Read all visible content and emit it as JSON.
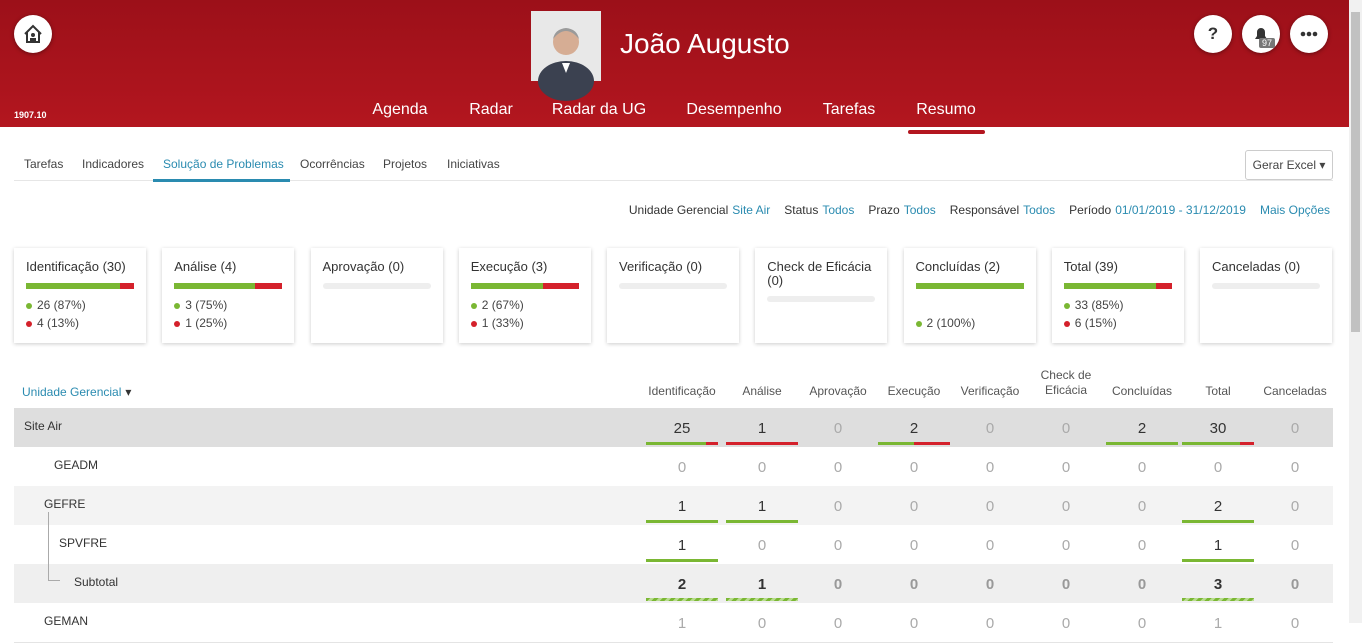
{
  "header": {
    "version": "1907.10",
    "user": "João Augusto",
    "notifications": "97",
    "help": "?",
    "nav": [
      "Agenda",
      "Radar",
      "Radar da UG",
      "Desempenho",
      "Tarefas",
      "Resumo"
    ]
  },
  "tabs": [
    "Tarefas",
    "Indicadores",
    "Solução de Problemas",
    "Ocorrências",
    "Projetos",
    "Iniciativas"
  ],
  "export_button": "Gerar Excel",
  "filters": [
    {
      "label": "Unidade Gerencial",
      "value": "Site Air"
    },
    {
      "label": "Status",
      "value": "Todos"
    },
    {
      "label": "Prazo",
      "value": "Todos"
    },
    {
      "label": "Responsável",
      "value": "Todos"
    },
    {
      "label": "Período",
      "value": "01/01/2019 - 31/12/2019"
    }
  ],
  "more_options": "Mais Opções",
  "cards": [
    {
      "title": "Identificação (30)",
      "green": {
        "value": 87,
        "label": "26 (87%)"
      },
      "red": {
        "value": 13,
        "label": "4 (13%)"
      }
    },
    {
      "title": "Análise (4)",
      "green": {
        "value": 75,
        "label": "3 (75%)"
      },
      "red": {
        "value": 25,
        "label": "1 (25%)"
      }
    },
    {
      "title": "Aprovação (0)"
    },
    {
      "title": "Execução (3)",
      "green": {
        "value": 67,
        "label": "2 (67%)"
      },
      "red": {
        "value": 33,
        "label": "1 (33%)"
      }
    },
    {
      "title": "Verificação (0)"
    },
    {
      "title": "Check de Eficácia (0)"
    },
    {
      "title": "Concluídas (2)",
      "green": {
        "value": 100,
        "label": "2 (100%)"
      }
    },
    {
      "title": "Total (39)",
      "green": {
        "value": 85,
        "label": "33 (85%)"
      },
      "red": {
        "value": 15,
        "label": "6 (15%)"
      }
    },
    {
      "title": "Canceladas (0)"
    }
  ],
  "table": {
    "group_header": "Unidade Gerencial",
    "columns": [
      "Identificação",
      "Análise",
      "Aprovação",
      "Execução",
      "Verificação",
      "Check de Eficácia",
      "Concluídas",
      "Total",
      "Canceladas"
    ],
    "rows": [
      {
        "name": "Site Air",
        "values": [
          25,
          1,
          0,
          2,
          0,
          0,
          2,
          30,
          0
        ]
      },
      {
        "name": "GEADM",
        "values": [
          0,
          0,
          0,
          0,
          0,
          0,
          0,
          0,
          0
        ]
      },
      {
        "name": "GEFRE",
        "values": [
          1,
          1,
          0,
          0,
          0,
          0,
          0,
          2,
          0
        ]
      },
      {
        "name": "SPVFRE",
        "values": [
          1,
          0,
          0,
          0,
          0,
          0,
          0,
          1,
          0
        ]
      },
      {
        "name": "Subtotal",
        "values": [
          2,
          1,
          0,
          0,
          0,
          0,
          0,
          3,
          0
        ]
      },
      {
        "name": "GEMAN",
        "values": [
          1,
          0,
          0,
          0,
          0,
          0,
          0,
          1,
          0
        ]
      }
    ]
  }
}
